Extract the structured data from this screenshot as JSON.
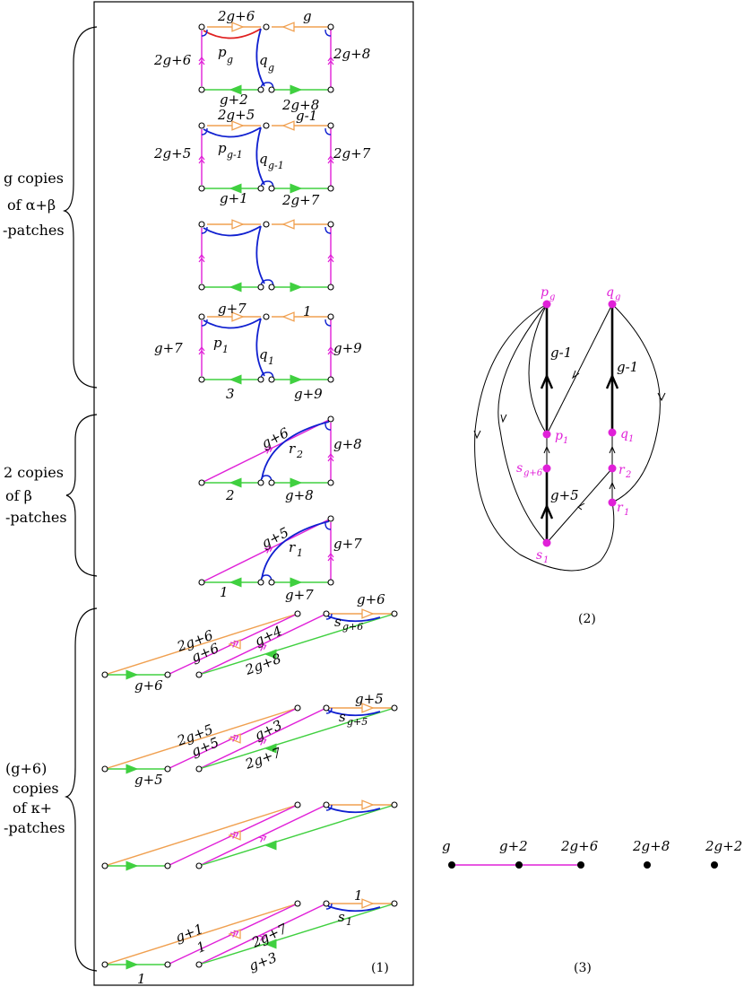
{
  "colors": {
    "orange": "#f0a050",
    "magenta": "#e020d8",
    "green": "#40d040",
    "blue": "#1020d0",
    "red": "#e02020",
    "black": "#000000"
  },
  "side_labels": {
    "ab_line1": "g  copies",
    "ab_line2": "of  α+β",
    "ab_line3": "-patches",
    "b_line1": "2  copies",
    "b_line2": "of    β",
    "b_line3": "-patches",
    "k_line1": "(g+6)",
    "k_line2": "copies",
    "k_line3": "of  κ+",
    "k_line4": "-patches"
  },
  "ab_patches": [
    {
      "top_left": "2g+6",
      "top_right": "g",
      "left": "2g+6",
      "right": "2g+8",
      "bottom_left": "g+2",
      "bottom_right": "2g+8",
      "p": "p",
      "p_sub": "g",
      "q": "q",
      "q_sub": "g"
    },
    {
      "top_left": "2g+5",
      "top_right": "g-1",
      "left": "2g+5",
      "right": "2g+7",
      "bottom_left": "g+1",
      "bottom_right": "2g+7",
      "p": "p",
      "p_sub": "g-1",
      "q": "q",
      "q_sub": "g-1"
    },
    {
      "top_left": "",
      "top_right": "",
      "left": "",
      "right": "",
      "bottom_left": "",
      "bottom_right": "",
      "p": "",
      "p_sub": "",
      "q": "",
      "q_sub": ""
    },
    {
      "top_left": "g+7",
      "top_right": "1",
      "left": "g+7",
      "right": "g+9",
      "bottom_left": "3",
      "bottom_right": "g+9",
      "p": "p",
      "p_sub": "1",
      "q": "q",
      "q_sub": "1"
    }
  ],
  "b_patches": [
    {
      "diag": "g+6",
      "right": "g+8",
      "bottom_left": "2",
      "bottom_right": "g+8",
      "r": "r",
      "r_sub": "2"
    },
    {
      "diag": "g+5",
      "right": "g+7",
      "bottom_left": "1",
      "bottom_right": "g+7",
      "r": "r",
      "r_sub": "1"
    }
  ],
  "k_patches": [
    {
      "orange_long": "2g+6",
      "magenta1": "g+6",
      "magenta2": "g+4",
      "green_long": "2g+8",
      "green_short": "g+6",
      "top_small": "g+6",
      "s": "s",
      "s_sub": "g+6"
    },
    {
      "orange_long": "2g+5",
      "magenta1": "g+5",
      "magenta2": "g+3",
      "green_long": "2g+7",
      "green_short": "g+5",
      "top_small": "g+5",
      "s": "s",
      "s_sub": "g+5"
    },
    {
      "orange_long": "",
      "magenta1": "",
      "magenta2": "",
      "green_long": "",
      "green_short": "",
      "top_small": "",
      "s": "",
      "s_sub": ""
    },
    {
      "orange_long": "g+1",
      "magenta1": "1",
      "magenta2": "2g+7",
      "green_long": "g+3",
      "green_short": "1",
      "top_small": "1",
      "s": "s",
      "s_sub": "1"
    }
  ],
  "panel1_caption": "(1)",
  "graph": {
    "caption": "(2)",
    "nodes": {
      "pg": "p",
      "pg_sub": "g",
      "qg": "q",
      "qg_sub": "g",
      "p1": "p",
      "p1_sub": "1",
      "q1": "q",
      "q1_sub": "1",
      "sg6": "s",
      "sg6_sub": "g+6",
      "r2": "r",
      "r2_sub": "2",
      "r1": "r",
      "r1_sub": "1",
      "s1": "s",
      "s1_sub": "1"
    },
    "edge_left": "g-1",
    "edge_right": "g-1",
    "edge_bottom": "g+5"
  },
  "line_graph": {
    "caption": "(3)",
    "labels": [
      "g",
      "g+2",
      "2g+6",
      "2g+8",
      "2g+2"
    ]
  }
}
